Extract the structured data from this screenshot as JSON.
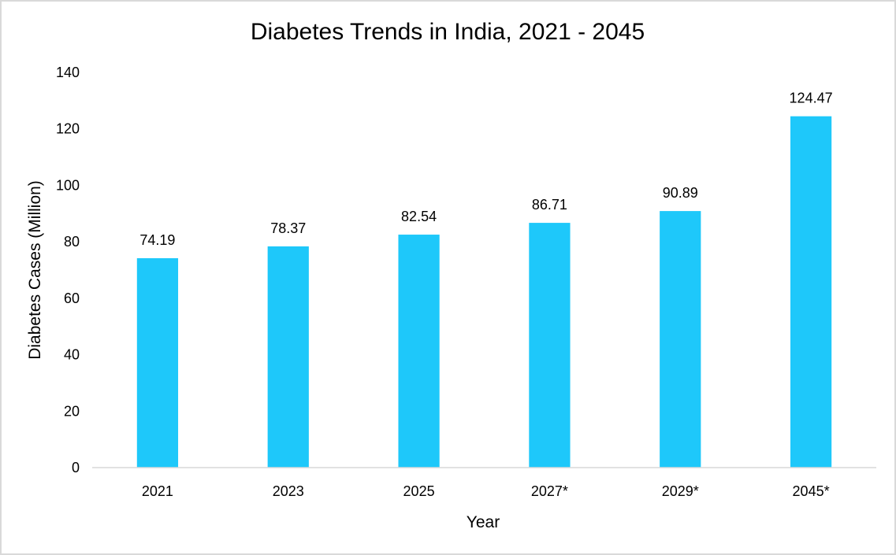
{
  "chart_data": {
    "type": "bar",
    "title": "Diabetes Trends in India, 2021 - 2045",
    "xlabel": "Year",
    "ylabel": "Diabetes Cases (Million)",
    "categories": [
      "2021",
      "2023",
      "2025",
      "2027*",
      "2029*",
      "2045*"
    ],
    "values": [
      74.19,
      78.37,
      82.54,
      86.71,
      90.89,
      124.47
    ],
    "data_labels": [
      "74.19",
      "78.37",
      "82.54",
      "86.71",
      "90.89",
      "124.47"
    ],
    "ylim": [
      0,
      140
    ],
    "yticks": [
      0,
      20,
      40,
      60,
      80,
      100,
      120,
      140
    ],
    "ytick_labels": [
      "0",
      "20",
      "40",
      "60",
      "80",
      "100",
      "120",
      "140"
    ],
    "grid": false,
    "legend": "none",
    "bar_color": "#1ec8fa",
    "axis_line_color": "#d9d9d9"
  }
}
